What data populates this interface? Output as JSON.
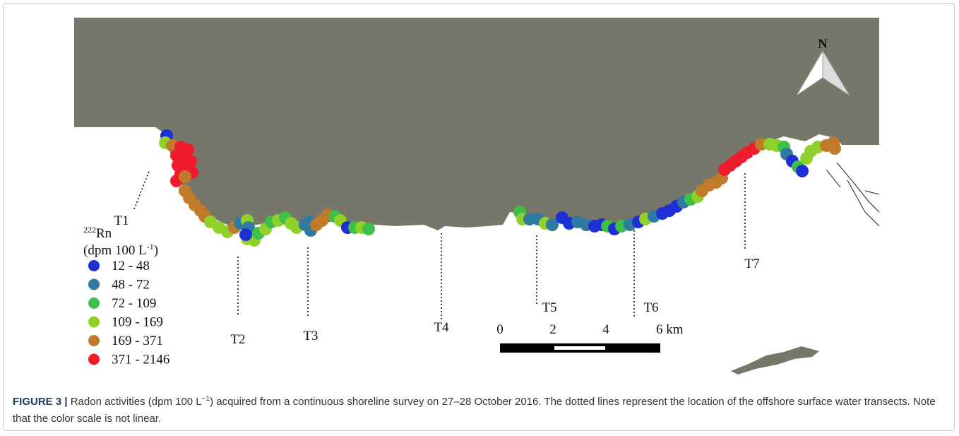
{
  "map": {
    "north_label": "N",
    "legend": {
      "isotope": "222",
      "element": "Rn",
      "unit": "(dpm 100 L",
      "unit_exp": "-1",
      "unit_close": ")",
      "items": [
        {
          "label": "12 - 48",
          "color": "#1f2fd6"
        },
        {
          "label": "48 - 72",
          "color": "#2e7aa0"
        },
        {
          "label": "72 - 109",
          "color": "#3dbf48"
        },
        {
          "label": "109 - 169",
          "color": "#8fd12a"
        },
        {
          "label": "169 - 371",
          "color": "#c07a2a"
        },
        {
          "label": "371 - 2146",
          "color": "#ee1c2c"
        }
      ]
    },
    "transects": [
      "T1",
      "T2",
      "T3",
      "T4",
      "T5",
      "T6",
      "T7"
    ],
    "scale_bar": [
      "0",
      "2",
      "4",
      "6 km"
    ]
  },
  "caption": {
    "label": "FIGURE 3 |",
    "text_a": "Radon activities (dpm 100 L",
    "text_exp": "−1",
    "text_b": ") acquired from a continuous shoreline survey on 27–28 October 2016. The dotted lines represent the location of the offshore surface water transects. Note that the color scale is not linear."
  }
}
